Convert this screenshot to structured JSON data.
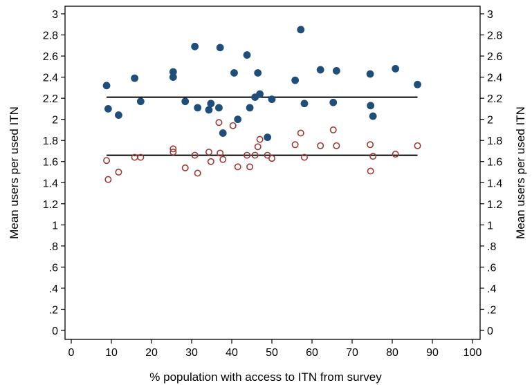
{
  "chart_data": {
    "type": "scatter",
    "title": "",
    "xlabel": "% population with access to ITN from survey",
    "ylabel": "Mean users per used ITN",
    "ylabel_right": "Mean users per used ITN",
    "xlim": [
      0,
      100
    ],
    "ylim": [
      0,
      3
    ],
    "x_ticks": [
      "0",
      "10",
      "20",
      "30",
      "40",
      "50",
      "60",
      "70",
      "80",
      "90",
      "100"
    ],
    "y_ticks": [
      "0",
      ".2",
      ".4",
      ".6",
      ".8",
      "1",
      "1.2",
      "1.4",
      "1.6",
      "1.8",
      "2",
      "2.2",
      "2.4",
      "2.6",
      "2.8",
      "3"
    ],
    "grid": false,
    "legend": "none",
    "series": [
      {
        "marker": "filled-circle",
        "color": "#1f4e79",
        "points": [
          [
            8.8,
            2.32
          ],
          [
            9.2,
            2.1
          ],
          [
            11.8,
            2.04
          ],
          [
            15.8,
            2.39
          ],
          [
            17.3,
            2.17
          ],
          [
            25.4,
            2.45
          ],
          [
            25.4,
            2.4
          ],
          [
            28.4,
            2.17
          ],
          [
            30.8,
            2.69
          ],
          [
            31.5,
            2.11
          ],
          [
            34.3,
            2.09
          ],
          [
            34.8,
            2.15
          ],
          [
            36.8,
            2.11
          ],
          [
            37.1,
            2.68
          ],
          [
            37.8,
            1.87
          ],
          [
            40.6,
            2.44
          ],
          [
            41.5,
            2.0
          ],
          [
            43.8,
            2.61
          ],
          [
            44.5,
            2.11
          ],
          [
            45.8,
            2.21
          ],
          [
            46.5,
            2.44
          ],
          [
            47.0,
            2.24
          ],
          [
            48.9,
            1.83
          ],
          [
            50.0,
            2.19
          ],
          [
            55.8,
            2.37
          ],
          [
            57.2,
            2.85
          ],
          [
            58.1,
            2.15
          ],
          [
            62.1,
            2.47
          ],
          [
            65.3,
            2.16
          ],
          [
            66.1,
            2.46
          ],
          [
            74.5,
            2.43
          ],
          [
            74.6,
            2.13
          ],
          [
            75.2,
            2.03
          ],
          [
            80.8,
            2.48
          ],
          [
            86.3,
            2.33
          ]
        ],
        "mean_line": {
          "y": 2.21,
          "x_from": 8.8,
          "x_to": 86.3
        }
      },
      {
        "marker": "hollow-circle",
        "color": "#9b3a36",
        "points": [
          [
            8.8,
            1.61
          ],
          [
            9.2,
            1.43
          ],
          [
            11.8,
            1.5
          ],
          [
            15.8,
            1.64
          ],
          [
            17.3,
            1.64
          ],
          [
            25.4,
            1.72
          ],
          [
            25.4,
            1.69
          ],
          [
            28.4,
            1.54
          ],
          [
            30.8,
            1.66
          ],
          [
            31.5,
            1.49
          ],
          [
            34.3,
            1.69
          ],
          [
            34.8,
            1.6
          ],
          [
            36.8,
            1.97
          ],
          [
            37.1,
            1.68
          ],
          [
            37.8,
            1.62
          ],
          [
            40.3,
            1.94
          ],
          [
            41.5,
            1.55
          ],
          [
            43.8,
            1.66
          ],
          [
            44.5,
            1.55
          ],
          [
            45.8,
            1.66
          ],
          [
            46.5,
            1.74
          ],
          [
            47.0,
            1.81
          ],
          [
            48.9,
            1.66
          ],
          [
            50.0,
            1.63
          ],
          [
            55.8,
            1.76
          ],
          [
            57.2,
            1.87
          ],
          [
            58.1,
            1.64
          ],
          [
            62.1,
            1.75
          ],
          [
            65.3,
            1.9
          ],
          [
            66.1,
            1.75
          ],
          [
            74.5,
            1.76
          ],
          [
            74.6,
            1.51
          ],
          [
            75.2,
            1.65
          ],
          [
            80.8,
            1.67
          ],
          [
            86.3,
            1.75
          ]
        ],
        "mean_line": {
          "y": 1.66,
          "x_from": 8.8,
          "x_to": 86.3
        }
      }
    ]
  }
}
